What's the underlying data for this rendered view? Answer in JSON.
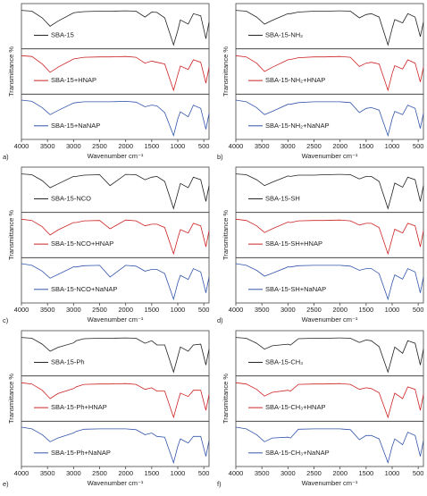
{
  "chart_data": [
    {
      "type": "line",
      "label": "a)",
      "xlabel": "Wavenumber cm⁻¹",
      "ylabel": "Transmittance %",
      "xlim": [
        4000,
        400
      ],
      "xticks": [
        4000,
        3500,
        3000,
        2500,
        2000,
        1500,
        1000,
        500
      ],
      "ylim": [
        0,
        1
      ],
      "x": [
        4000,
        3800,
        3600,
        3450,
        3300,
        3000,
        2950,
        2800,
        2500,
        2300,
        2000,
        1800,
        1630,
        1500,
        1400,
        1250,
        1080,
        1000,
        950,
        800,
        700,
        560,
        460,
        400
      ],
      "series": [
        {
          "name": "SBA-15",
          "color": "#222222",
          "values": [
            0.88,
            0.86,
            0.7,
            0.5,
            0.62,
            0.82,
            0.83,
            0.85,
            0.86,
            0.86,
            0.87,
            0.86,
            0.72,
            0.84,
            0.83,
            0.7,
            0.05,
            0.4,
            0.65,
            0.55,
            0.8,
            0.75,
            0.2,
            0.6
          ]
        },
        {
          "name": "SBA-15+HNAP",
          "color": "#cc2222",
          "values": [
            0.88,
            0.86,
            0.68,
            0.48,
            0.6,
            0.8,
            0.81,
            0.84,
            0.85,
            0.85,
            0.86,
            0.84,
            0.7,
            0.75,
            0.72,
            0.68,
            0.05,
            0.42,
            0.63,
            0.55,
            0.78,
            0.72,
            0.22,
            0.6
          ]
        },
        {
          "name": "SBA-15+NaNAP",
          "color": "#3355aa",
          "values": [
            0.9,
            0.87,
            0.72,
            0.55,
            0.65,
            0.83,
            0.84,
            0.86,
            0.86,
            0.86,
            0.87,
            0.85,
            0.74,
            0.78,
            0.76,
            0.6,
            0.05,
            0.45,
            0.62,
            0.5,
            0.78,
            0.7,
            0.2,
            0.58
          ]
        }
      ]
    },
    {
      "type": "line",
      "label": "b)",
      "xlabel": "Wavenumber cm⁻¹",
      "ylabel": "Transmittance %",
      "xlim": [
        4000,
        400
      ],
      "xticks": [
        4000,
        3500,
        3000,
        2500,
        2000,
        1500,
        1000,
        500
      ],
      "ylim": [
        0,
        1
      ],
      "x": [
        4000,
        3800,
        3600,
        3450,
        3300,
        3000,
        2950,
        2800,
        2500,
        2300,
        2000,
        1800,
        1630,
        1500,
        1400,
        1250,
        1080,
        1000,
        950,
        800,
        700,
        560,
        460,
        400
      ],
      "series": [
        {
          "name": "SBA-15-NH₂",
          "color": "#222222",
          "values": [
            0.88,
            0.86,
            0.72,
            0.55,
            0.64,
            0.8,
            0.8,
            0.84,
            0.86,
            0.86,
            0.87,
            0.86,
            0.7,
            0.78,
            0.8,
            0.72,
            0.05,
            0.45,
            0.66,
            0.58,
            0.8,
            0.72,
            0.25,
            0.6
          ]
        },
        {
          "name": "SBA-15-NH₂+HNAP",
          "color": "#cc2222",
          "values": [
            0.88,
            0.85,
            0.7,
            0.5,
            0.6,
            0.78,
            0.79,
            0.83,
            0.85,
            0.85,
            0.86,
            0.84,
            0.62,
            0.7,
            0.72,
            0.68,
            0.05,
            0.45,
            0.64,
            0.56,
            0.78,
            0.7,
            0.25,
            0.6
          ]
        },
        {
          "name": "SBA-15-NH₂+NaNAP",
          "color": "#3355aa",
          "values": [
            0.9,
            0.86,
            0.72,
            0.55,
            0.63,
            0.8,
            0.8,
            0.84,
            0.86,
            0.86,
            0.86,
            0.84,
            0.6,
            0.7,
            0.72,
            0.66,
            0.05,
            0.45,
            0.63,
            0.55,
            0.78,
            0.7,
            0.22,
            0.58
          ]
        }
      ]
    },
    {
      "type": "line",
      "label": "c)",
      "xlabel": "Wavenumber cm⁻¹",
      "ylabel": "Transmittance %",
      "xlim": [
        4000,
        400
      ],
      "xticks": [
        4000,
        3500,
        3000,
        2500,
        2000,
        1500,
        1000,
        500
      ],
      "ylim": [
        0,
        1
      ],
      "x": [
        4000,
        3800,
        3600,
        3450,
        3300,
        3000,
        2950,
        2800,
        2500,
        2300,
        2000,
        1800,
        1630,
        1500,
        1400,
        1250,
        1080,
        1000,
        950,
        800,
        700,
        560,
        460,
        400
      ],
      "series": [
        {
          "name": "SBA-15-NCO",
          "color": "#222222",
          "values": [
            0.88,
            0.86,
            0.72,
            0.55,
            0.64,
            0.82,
            0.82,
            0.85,
            0.86,
            0.6,
            0.87,
            0.86,
            0.74,
            0.8,
            0.82,
            0.7,
            0.05,
            0.42,
            0.65,
            0.55,
            0.8,
            0.74,
            0.22,
            0.6
          ]
        },
        {
          "name": "SBA-15-NCO+HNAP",
          "color": "#cc2222",
          "values": [
            0.88,
            0.85,
            0.7,
            0.5,
            0.62,
            0.8,
            0.8,
            0.84,
            0.85,
            0.65,
            0.86,
            0.84,
            0.72,
            0.76,
            0.76,
            0.68,
            0.05,
            0.42,
            0.63,
            0.55,
            0.78,
            0.72,
            0.22,
            0.6
          ]
        },
        {
          "name": "SBA-15-NCO+NaNAP",
          "color": "#3355aa",
          "values": [
            0.9,
            0.86,
            0.72,
            0.55,
            0.64,
            0.82,
            0.82,
            0.85,
            0.86,
            0.58,
            0.86,
            0.84,
            0.72,
            0.76,
            0.76,
            0.66,
            0.05,
            0.44,
            0.62,
            0.52,
            0.78,
            0.7,
            0.2,
            0.58
          ]
        }
      ]
    },
    {
      "type": "line",
      "label": "d)",
      "xlabel": "Wavenumber cm⁻¹",
      "ylabel": "Transmittance %",
      "xlim": [
        4000,
        400
      ],
      "xticks": [
        4000,
        3500,
        3000,
        2500,
        2000,
        1500,
        1000,
        500
      ],
      "ylim": [
        0,
        1
      ],
      "x": [
        4000,
        3800,
        3600,
        3450,
        3300,
        3000,
        2950,
        2800,
        2500,
        2300,
        2000,
        1800,
        1630,
        1500,
        1400,
        1250,
        1080,
        1000,
        950,
        800,
        700,
        560,
        460,
        400
      ],
      "series": [
        {
          "name": "SBA-15-SH",
          "color": "#222222",
          "values": [
            0.88,
            0.86,
            0.74,
            0.6,
            0.68,
            0.83,
            0.82,
            0.85,
            0.85,
            0.86,
            0.87,
            0.86,
            0.76,
            0.82,
            0.82,
            0.7,
            0.05,
            0.42,
            0.66,
            0.56,
            0.8,
            0.74,
            0.22,
            0.6
          ]
        },
        {
          "name": "SBA-15-SH+HNAP",
          "color": "#cc2222",
          "values": [
            0.88,
            0.85,
            0.72,
            0.56,
            0.65,
            0.81,
            0.8,
            0.84,
            0.85,
            0.85,
            0.86,
            0.84,
            0.74,
            0.78,
            0.78,
            0.68,
            0.05,
            0.42,
            0.64,
            0.55,
            0.78,
            0.72,
            0.22,
            0.6
          ]
        },
        {
          "name": "SBA-15-SH+NaNAP",
          "color": "#3355aa",
          "values": [
            0.9,
            0.86,
            0.74,
            0.6,
            0.67,
            0.82,
            0.82,
            0.85,
            0.86,
            0.86,
            0.86,
            0.84,
            0.74,
            0.78,
            0.78,
            0.66,
            0.05,
            0.44,
            0.63,
            0.53,
            0.78,
            0.7,
            0.2,
            0.58
          ]
        }
      ]
    },
    {
      "type": "line",
      "label": "e)",
      "xlabel": "Wavenumber cm⁻¹",
      "ylabel": "Transmittance %",
      "xlim": [
        4000,
        400
      ],
      "xticks": [
        4000,
        3500,
        3000,
        2500,
        2000,
        1500,
        1000,
        500
      ],
      "ylim": [
        0,
        1
      ],
      "x": [
        4000,
        3800,
        3600,
        3450,
        3300,
        3000,
        2950,
        2800,
        2500,
        2300,
        2000,
        1800,
        1630,
        1500,
        1400,
        1250,
        1080,
        1000,
        950,
        800,
        700,
        560,
        460,
        400
      ],
      "series": [
        {
          "name": "SBA-15-Ph",
          "color": "#222222",
          "values": [
            0.88,
            0.86,
            0.72,
            0.55,
            0.64,
            0.75,
            0.8,
            0.85,
            0.86,
            0.86,
            0.87,
            0.86,
            0.74,
            0.8,
            0.7,
            0.7,
            0.05,
            0.42,
            0.65,
            0.55,
            0.7,
            0.72,
            0.22,
            0.6
          ]
        },
        {
          "name": "SBA-15-Ph+HNAP",
          "color": "#cc2222",
          "values": [
            0.88,
            0.85,
            0.7,
            0.5,
            0.62,
            0.74,
            0.78,
            0.84,
            0.85,
            0.85,
            0.86,
            0.84,
            0.72,
            0.76,
            0.68,
            0.68,
            0.05,
            0.42,
            0.63,
            0.55,
            0.7,
            0.7,
            0.22,
            0.6
          ]
        },
        {
          "name": "SBA-15-Ph+NaNAP",
          "color": "#3355aa",
          "values": [
            0.9,
            0.86,
            0.72,
            0.55,
            0.64,
            0.76,
            0.8,
            0.85,
            0.86,
            0.86,
            0.86,
            0.84,
            0.72,
            0.76,
            0.68,
            0.66,
            0.05,
            0.44,
            0.62,
            0.52,
            0.68,
            0.68,
            0.2,
            0.58
          ]
        }
      ]
    },
    {
      "type": "line",
      "label": "f)",
      "xlabel": "Wavenumber cm⁻¹",
      "ylabel": "Transmittance %",
      "xlim": [
        4000,
        400
      ],
      "xticks": [
        4000,
        3500,
        3000,
        2500,
        2000,
        1500,
        1000,
        500
      ],
      "ylim": [
        0,
        1
      ],
      "x": [
        4000,
        3800,
        3600,
        3450,
        3300,
        3000,
        2950,
        2800,
        2500,
        2300,
        2000,
        1800,
        1630,
        1500,
        1400,
        1250,
        1080,
        1000,
        950,
        800,
        700,
        560,
        460,
        400
      ],
      "series": [
        {
          "name": "SBA-15-CH₃",
          "color": "#222222",
          "values": [
            0.88,
            0.86,
            0.74,
            0.6,
            0.68,
            0.72,
            0.7,
            0.85,
            0.86,
            0.86,
            0.87,
            0.86,
            0.76,
            0.82,
            0.8,
            0.66,
            0.05,
            0.42,
            0.65,
            0.5,
            0.8,
            0.74,
            0.22,
            0.6
          ]
        },
        {
          "name": "SBA-15-CH₃+HNAP",
          "color": "#cc2222",
          "values": [
            0.88,
            0.85,
            0.72,
            0.56,
            0.65,
            0.7,
            0.68,
            0.84,
            0.85,
            0.85,
            0.86,
            0.84,
            0.72,
            0.76,
            0.74,
            0.64,
            0.05,
            0.42,
            0.63,
            0.5,
            0.78,
            0.72,
            0.22,
            0.6
          ]
        },
        {
          "name": "SBA-15-CH₃+NaNAP",
          "color": "#3355aa",
          "values": [
            0.9,
            0.86,
            0.72,
            0.55,
            0.64,
            0.66,
            0.64,
            0.85,
            0.86,
            0.86,
            0.86,
            0.84,
            0.6,
            0.7,
            0.7,
            0.62,
            0.05,
            0.44,
            0.62,
            0.48,
            0.78,
            0.7,
            0.2,
            0.58
          ]
        }
      ]
    }
  ]
}
